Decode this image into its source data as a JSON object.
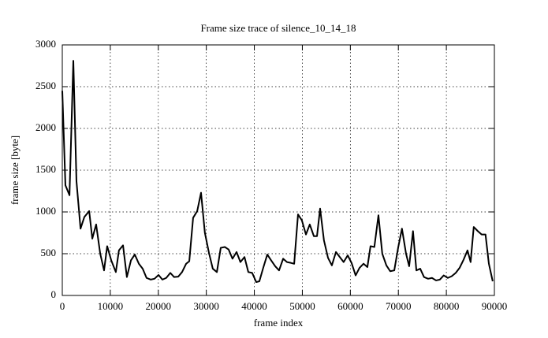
{
  "chart_data": {
    "type": "line",
    "title": "Frame size trace of silence_10_14_18",
    "x_label": "frame index",
    "y_label": "frame size [byte]",
    "xlim": [
      0,
      90000
    ],
    "ylim": [
      0,
      3000
    ],
    "xticks": [
      0,
      10000,
      20000,
      30000,
      40000,
      50000,
      60000,
      70000,
      80000,
      90000
    ],
    "yticks": [
      0,
      500,
      1000,
      1500,
      2000,
      2500,
      3000
    ],
    "grid": true,
    "series": [
      {
        "color": "#000000",
        "x": [
          0,
          650,
          1500,
          2300,
          2950,
          3800,
          4600,
          5600,
          6250,
          7050,
          7900,
          8700,
          9350,
          10200,
          11150,
          11800,
          12650,
          13450,
          14300,
          15100,
          15950,
          16750,
          17550,
          18400,
          19200,
          20050,
          20850,
          21650,
          22500,
          23300,
          24150,
          24950,
          25800,
          26450,
          27250,
          28100,
          28900,
          29700,
          30550,
          31350,
          32200,
          33000,
          33850,
          34650,
          35450,
          36300,
          37100,
          37950,
          38750,
          39550,
          40400,
          41050,
          41850,
          42700,
          43500,
          44350,
          45150,
          46000,
          46800,
          47600,
          48300,
          49100,
          49900,
          50750,
          51550,
          52400,
          53050,
          53700,
          54500,
          55350,
          56150,
          57000,
          57800,
          58600,
          59450,
          60250,
          61100,
          61900,
          62750,
          63550,
          64200,
          65000,
          65850,
          66650,
          67500,
          68300,
          69150,
          69950,
          70750,
          71600,
          72250,
          73050,
          73750,
          74550,
          75350,
          76200,
          77000,
          77850,
          78650,
          79450,
          80300,
          81100,
          81950,
          82750,
          83600,
          84400,
          85050,
          85700,
          86550,
          87350,
          88150,
          88850,
          89650
        ],
        "values": [
          2450,
          1320,
          1200,
          2810,
          1370,
          800,
          940,
          1010,
          680,
          850,
          500,
          300,
          590,
          420,
          280,
          540,
          600,
          220,
          420,
          490,
          380,
          320,
          210,
          190,
          200,
          245,
          190,
          210,
          270,
          220,
          225,
          280,
          380,
          410,
          930,
          1010,
          1230,
          750,
          510,
          320,
          280,
          570,
          580,
          550,
          440,
          520,
          400,
          460,
          280,
          270,
          160,
          170,
          330,
          490,
          420,
          350,
          300,
          440,
          400,
          390,
          380,
          970,
          900,
          730,
          850,
          710,
          710,
          1040,
          660,
          450,
          360,
          520,
          460,
          400,
          480,
          390,
          240,
          330,
          380,
          340,
          590,
          580,
          960,
          500,
          360,
          290,
          300,
          570,
          800,
          500,
          350,
          770,
          300,
          320,
          220,
          200,
          210,
          180,
          190,
          240,
          210,
          230,
          270,
          330,
          430,
          540,
          400,
          820,
          770,
          730,
          730,
          380,
          170
        ]
      }
    ]
  }
}
